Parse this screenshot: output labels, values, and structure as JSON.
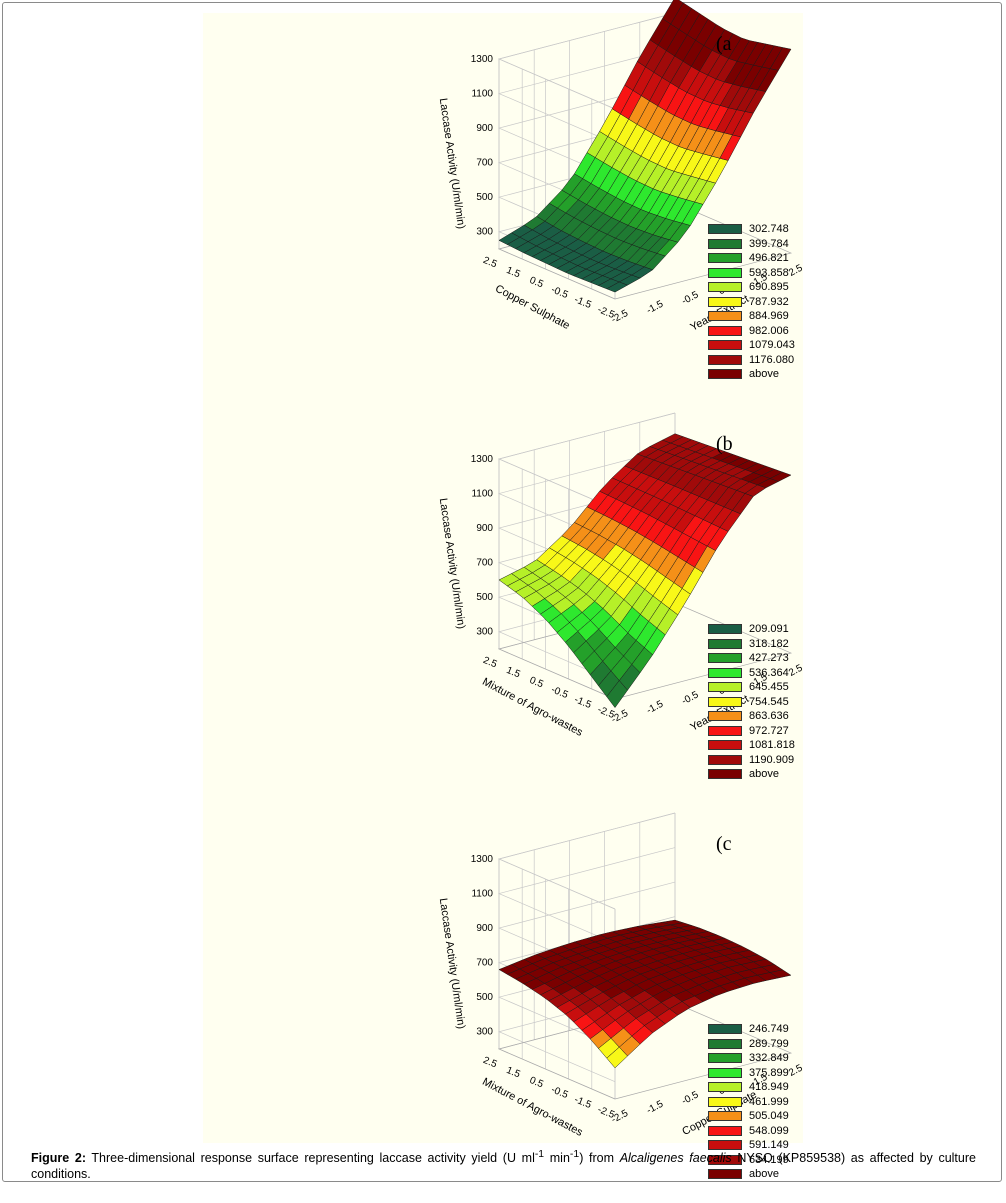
{
  "chart_data": [
    {
      "type": "surface",
      "panel_label": "(a",
      "zlabel": "Laccase Activity (U/ml/min)",
      "xlabel": "Yeast Extract",
      "ylabel": "Copper Sulphate",
      "x_ticks": [
        "-2.5",
        "-1.5",
        "-0.5",
        "0.5",
        "1.5",
        "2.5"
      ],
      "y_ticks": [
        "-2.5",
        "-1.5",
        "-0.5",
        "0.5",
        "1.5",
        "2.5"
      ],
      "z_ticks": [
        "300",
        "500",
        "700",
        "900",
        "1100",
        "1300"
      ],
      "zlim": [
        200,
        1300
      ],
      "legend": [
        "302.748",
        "399.784",
        "496.821",
        "593.858",
        "690.895",
        "787.932",
        "884.969",
        "982.006",
        "1079.043",
        "1176.080",
        "above"
      ],
      "legend_colors": [
        "#1a5e45",
        "#1f7a32",
        "#24a02a",
        "#2ee82e",
        "#b6f028",
        "#f8f818",
        "#f59018",
        "#f81414",
        "#c80e0e",
        "#a00a0a",
        "#7a0000"
      ],
      "surface": {
        "x": [
          -2.5,
          -1.5,
          -0.5,
          0.5,
          1.5,
          2.5
        ],
        "y": [
          -2.5,
          -1.5,
          -0.5,
          0.5,
          1.5,
          2.5
        ],
        "z": [
          [
            240,
            300,
            470,
            760,
            1090,
            1380
          ],
          [
            235,
            290,
            450,
            740,
            1060,
            1350
          ],
          [
            230,
            285,
            440,
            720,
            1040,
            1320
          ],
          [
            235,
            290,
            445,
            725,
            1045,
            1330
          ],
          [
            240,
            300,
            460,
            745,
            1070,
            1360
          ],
          [
            250,
            320,
            480,
            770,
            1100,
            1390
          ]
        ]
      }
    },
    {
      "type": "surface",
      "panel_label": "(b",
      "zlabel": "Laccase Activity (U/ml/min)",
      "xlabel": "Yeast Extract",
      "ylabel": "Mixture of Agro-wastes",
      "x_ticks": [
        "-2.5",
        "-1.5",
        "-0.5",
        "0.5",
        "1.5",
        "2.5"
      ],
      "y_ticks": [
        "-2.5",
        "-1.5",
        "-0.5",
        "0.5",
        "1.5",
        "2.5"
      ],
      "z_ticks": [
        "300",
        "500",
        "700",
        "900",
        "1100",
        "1300"
      ],
      "zlim": [
        200,
        1300
      ],
      "legend": [
        "209.091",
        "318.182",
        "427.273",
        "536.364",
        "645.455",
        "754.545",
        "863.636",
        "972.727",
        "1081.818",
        "1190.909",
        "above"
      ],
      "legend_colors": [
        "#1a5e45",
        "#1f7a32",
        "#24a02a",
        "#2ee82e",
        "#b6f028",
        "#f8f818",
        "#f59018",
        "#f81414",
        "#c80e0e",
        "#a00a0a",
        "#7a0000"
      ],
      "surface": {
        "x": [
          -2.5,
          -1.5,
          -0.5,
          0.5,
          1.5,
          2.5
        ],
        "y": [
          -2.5,
          -1.5,
          -0.5,
          0.5,
          1.5,
          2.5
        ],
        "z": [
          [
            150,
            380,
            650,
            950,
            1180,
            1230
          ],
          [
            270,
            440,
            690,
            960,
            1170,
            1220
          ],
          [
            390,
            520,
            730,
            970,
            1160,
            1210
          ],
          [
            490,
            580,
            760,
            980,
            1150,
            1200
          ],
          [
            560,
            620,
            780,
            985,
            1140,
            1190
          ],
          [
            600,
            650,
            790,
            990,
            1130,
            1180
          ]
        ]
      }
    },
    {
      "type": "surface",
      "panel_label": "(c",
      "zlabel": "Laccase Activity (U/ml/min)",
      "xlabel": "Copper Sulphate",
      "ylabel": "Mixture of Agro-wastes",
      "x_ticks": [
        "-2.5",
        "-1.5",
        "-0.5",
        "0.5",
        "1.5",
        "2.5"
      ],
      "y_ticks": [
        "-2.5",
        "-1.5",
        "-0.5",
        "0.5",
        "1.5",
        "2.5"
      ],
      "z_ticks": [
        "300",
        "500",
        "700",
        "900",
        "1100",
        "1300"
      ],
      "zlim": [
        200,
        1300
      ],
      "legend": [
        "246.749",
        "289.799",
        "332.849",
        "375.899",
        "418.949",
        "461.999",
        "505.049",
        "548.099",
        "591.149",
        "634.199",
        "above"
      ],
      "legend_colors": [
        "#1a5e45",
        "#1f7a32",
        "#24a02a",
        "#2ee82e",
        "#b6f028",
        "#f8f818",
        "#f59018",
        "#f81414",
        "#c80e0e",
        "#a00a0a",
        "#7a0000"
      ],
      "surface": {
        "x": [
          -2.5,
          -1.5,
          -0.5,
          0.5,
          1.5,
          2.5
        ],
        "y": [
          -2.5,
          -1.5,
          -0.5,
          0.5,
          1.5,
          2.5
        ],
        "z": [
          [
            380,
            520,
            610,
            650,
            660,
            650
          ],
          [
            480,
            580,
            650,
            680,
            690,
            680
          ],
          [
            560,
            630,
            680,
            700,
            705,
            695
          ],
          [
            610,
            660,
            695,
            710,
            710,
            700
          ],
          [
            640,
            680,
            700,
            712,
            708,
            695
          ],
          [
            660,
            690,
            705,
            710,
            700,
            680
          ]
        ]
      }
    }
  ],
  "caption": {
    "label": "Figure 2:",
    "text_before_italic": " Three-dimensional response surface representing laccase activity yield (U ml",
    "sup1": "-1",
    "text_mid": " min",
    "sup2": "-1",
    "text_after": ") from ",
    "italic": "Alcaligenes faecalis",
    "text_end": " NYSO (KP859538) as affected by culture conditions."
  }
}
